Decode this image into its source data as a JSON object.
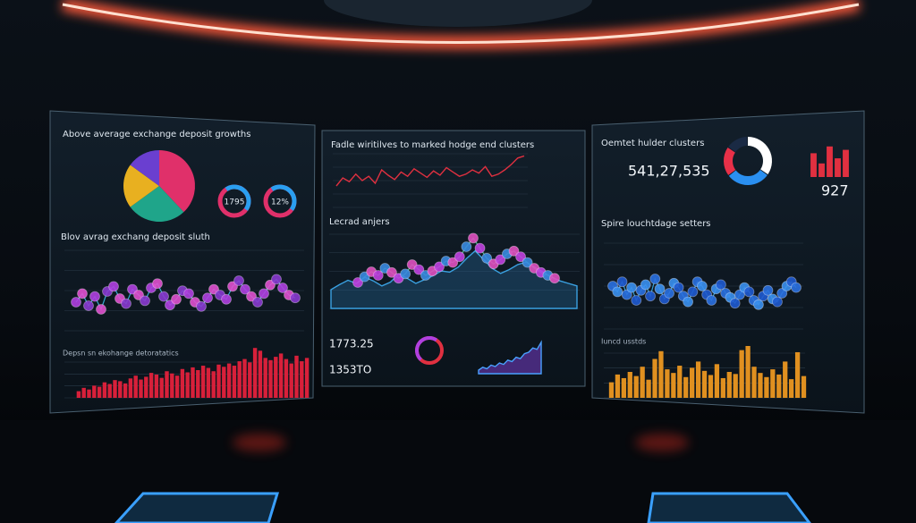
{
  "left": {
    "title": "Above average exchange deposit growths",
    "pie": [
      38,
      27,
      20,
      15
    ],
    "pie_colors": [
      "#e0306a",
      "#1fa58a",
      "#e8b020",
      "#6a3fd0"
    ],
    "gauges": [
      "1795",
      "12%"
    ],
    "scatter_title": "Blov avrag exchang deposit sluth",
    "scatter": [
      40,
      52,
      35,
      48,
      30,
      55,
      62,
      45,
      38,
      58,
      50,
      42,
      60,
      66,
      48,
      36,
      44,
      56,
      52,
      40,
      34,
      46,
      58,
      50,
      44,
      62,
      70,
      58,
      48,
      40,
      52,
      64,
      72,
      60,
      50,
      46
    ],
    "bars_title": "Depsn sn ekohange detoratatics",
    "bars": [
      12,
      18,
      15,
      22,
      20,
      28,
      25,
      32,
      30,
      26,
      35,
      40,
      33,
      38,
      45,
      42,
      36,
      48,
      44,
      40,
      52,
      46,
      55,
      50,
      58,
      54,
      48,
      60,
      56,
      62,
      58,
      66,
      70,
      64,
      90,
      85,
      72,
      68,
      74,
      80,
      70,
      62,
      76,
      66,
      72
    ]
  },
  "middle": {
    "title": "Fadle wiritilves to marked hodge end clusters",
    "line": [
      40,
      55,
      48,
      62,
      50,
      58,
      45,
      70,
      60,
      52,
      66,
      58,
      72,
      64,
      56,
      68,
      60,
      74,
      66,
      58,
      62,
      70,
      64,
      76,
      58,
      62,
      70,
      80,
      92,
      96
    ],
    "cluster_title": "Lecrad anjers",
    "clusters": [
      30,
      38,
      45,
      40,
      50,
      44,
      36,
      42,
      55,
      48,
      40,
      46,
      52,
      60,
      58,
      66,
      80,
      92,
      78,
      64,
      56,
      62,
      70,
      74,
      66,
      58,
      50,
      44,
      40,
      36
    ],
    "stats": [
      "1773.25",
      "1353TO"
    ],
    "area": [
      10,
      18,
      14,
      24,
      20,
      30,
      26,
      38,
      34,
      46,
      42,
      56,
      60,
      72,
      68,
      88
    ]
  },
  "right": {
    "title": "Oemtet hulder clusters",
    "headline": "541,27,535",
    "donut": [
      35,
      30,
      20,
      15
    ],
    "donut_colors": [
      "#ffffff",
      "#2a8ff0",
      "#e83048",
      "#1a2a44"
    ],
    "mini_bars": [
      70,
      40,
      90,
      55,
      80
    ],
    "kpi": "927",
    "scatter_title": "Spire louchtdage setters",
    "scatter": [
      60,
      52,
      66,
      48,
      58,
      40,
      54,
      62,
      46,
      70,
      56,
      42,
      50,
      64,
      58,
      46,
      38,
      52,
      66,
      60,
      48,
      40,
      56,
      62,
      50,
      44,
      36,
      48,
      58,
      52,
      40,
      34,
      46,
      54,
      42,
      38,
      50,
      60,
      66,
      58
    ],
    "bars_title": "Iuncd usstds",
    "bars": [
      30,
      45,
      38,
      50,
      42,
      60,
      35,
      75,
      90,
      55,
      48,
      62,
      40,
      58,
      70,
      52,
      44,
      65,
      38,
      50,
      46,
      92,
      100,
      60,
      48,
      40,
      55,
      45,
      70,
      36,
      88,
      42
    ]
  }
}
